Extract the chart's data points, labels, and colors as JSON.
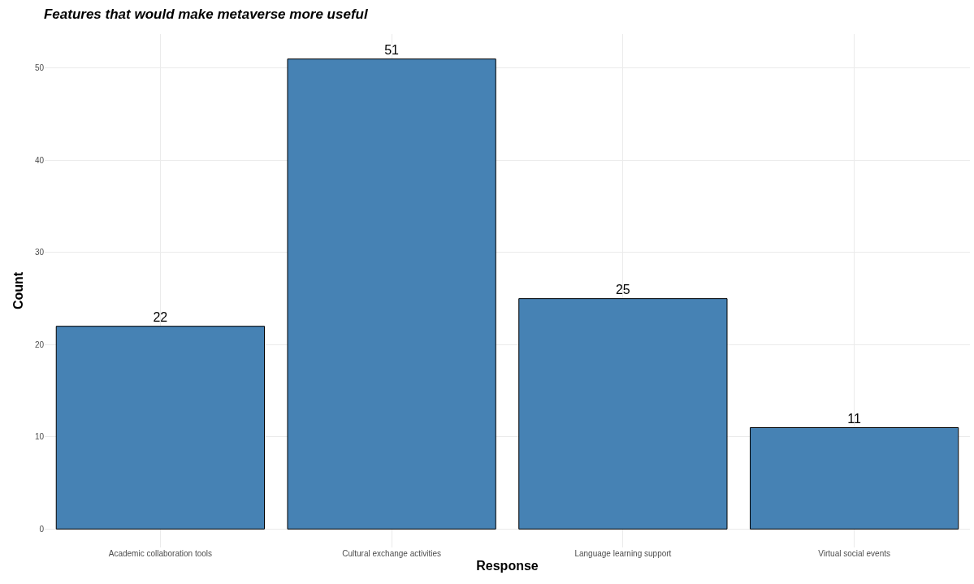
{
  "chart_data": {
    "type": "bar",
    "title": "Features that would make metaverse more useful",
    "xlabel": "Response",
    "ylabel": "Count",
    "categories": [
      "Academic collaboration tools",
      "Cultural exchange activities",
      "Language learning support",
      "Virtual social events"
    ],
    "values": [
      22,
      51,
      25,
      11
    ],
    "color": "#4682b4",
    "data_labels": true,
    "grid": true,
    "ylim": [
      -2,
      53.7
    ],
    "yticks": [
      0,
      10,
      20,
      30,
      40,
      50
    ]
  }
}
